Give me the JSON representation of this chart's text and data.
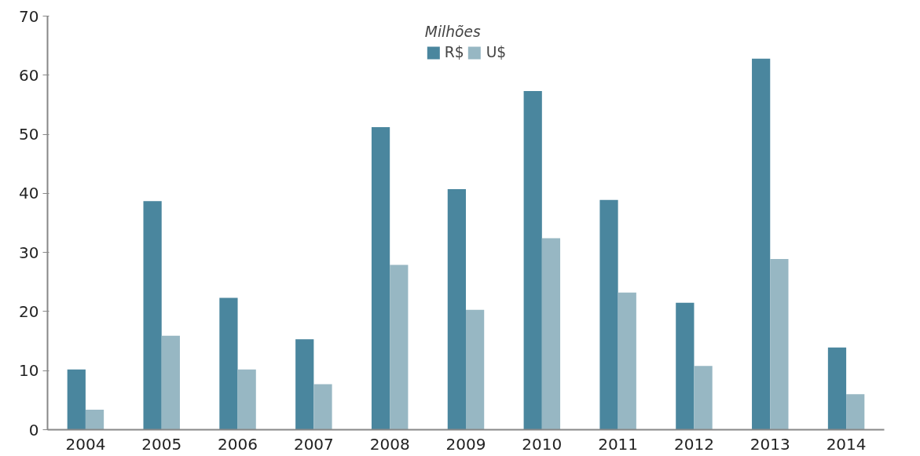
{
  "chart_data": {
    "type": "bar",
    "legend_title": "Milhões",
    "categories": [
      "2004",
      "2005",
      "2006",
      "2007",
      "2008",
      "2009",
      "2010",
      "2011",
      "2012",
      "2013",
      "2014"
    ],
    "series": [
      {
        "name": "R$",
        "color": "#4a869e",
        "values": [
          10.2,
          38.7,
          22.3,
          15.3,
          51.2,
          40.7,
          57.3,
          38.9,
          21.5,
          62.8,
          13.9
        ]
      },
      {
        "name": "U$",
        "color": "#97b7c3",
        "values": [
          3.4,
          15.9,
          10.2,
          7.7,
          27.9,
          20.3,
          32.4,
          23.2,
          10.8,
          28.9,
          6.0
        ]
      }
    ],
    "ylim": [
      0,
      70
    ],
    "yticks": [
      0,
      10,
      20,
      30,
      40,
      50,
      60,
      70
    ],
    "grid": false,
    "legend": "top"
  }
}
